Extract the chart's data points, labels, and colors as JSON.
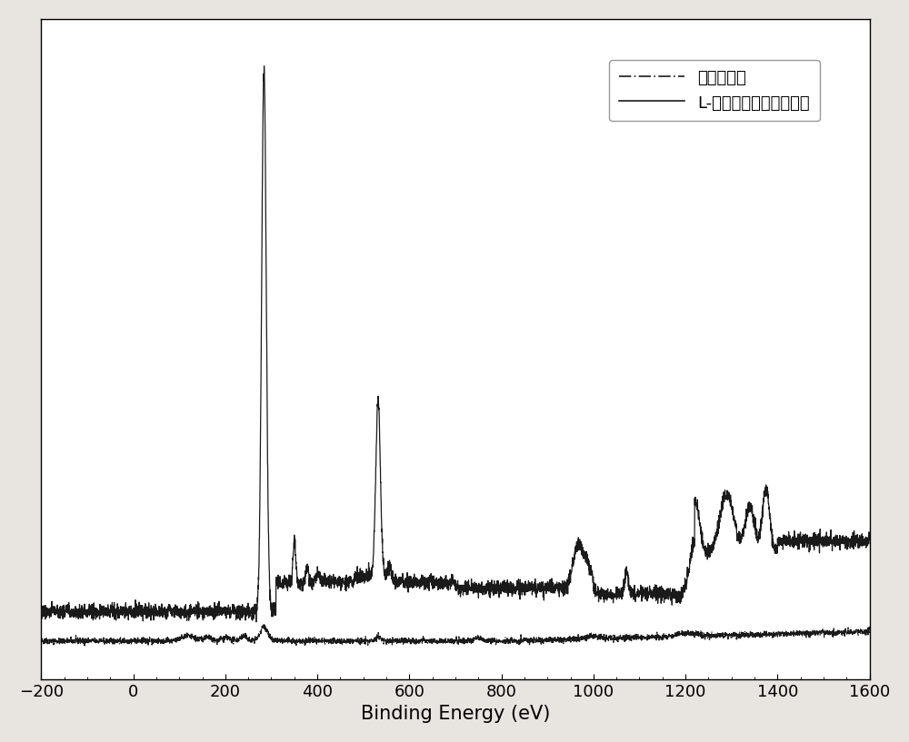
{
  "title": "",
  "xlabel": "Binding Energy (eV)",
  "ylabel": "",
  "xlim": [
    -200,
    1600
  ],
  "ylim": [
    -5,
    220
  ],
  "xticks": [
    -200,
    0,
    200,
    400,
    600,
    800,
    1000,
    1200,
    1400,
    1600
  ],
  "background_color": "#e8e4e0",
  "plot_bg_color": "#ffffff",
  "legend_labels": [
    "氧化石墨烯",
    "L-半胱氨酸功能化石墨烯"
  ],
  "line_color": "#1a1a1a",
  "xlabel_fontsize": 15,
  "tick_fontsize": 13,
  "legend_fontsize": 13
}
